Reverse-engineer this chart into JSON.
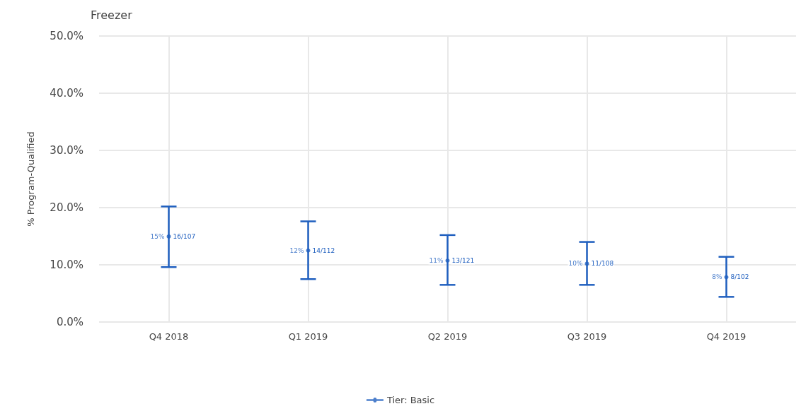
{
  "chart_data": {
    "type": "scatter",
    "title": "Freezer",
    "ylabel": "% Program-Qualified",
    "categories": [
      "Q4 2018",
      "Q1 2019",
      "Q2 2019",
      "Q3 2019",
      "Q4 2019"
    ],
    "series": [
      {
        "name": "Tier: Basic",
        "color": "#1f5fbf",
        "values": [
          14.95,
          12.5,
          10.74,
          10.19,
          7.84
        ],
        "errors": [
          [
            9.6,
            20.2
          ],
          [
            7.5,
            17.6
          ],
          [
            6.5,
            15.2
          ],
          [
            6.5,
            14.0
          ],
          [
            4.4,
            11.4
          ]
        ],
        "value_labels": [
          "15%",
          "12%",
          "11%",
          "10%",
          "8%"
        ]
      }
    ],
    "annotations": [
      {
        "text": "16/107",
        "x": "Q4 2018",
        "y": 14.95
      },
      {
        "text": "14/112",
        "x": "Q1 2019",
        "y": 12.5
      },
      {
        "text": "13/121",
        "x": "Q2 2019",
        "y": 10.74
      },
      {
        "text": "11/108",
        "x": "Q3 2019",
        "y": 10.19
      },
      {
        "text": "8/102",
        "x": "Q4 2019",
        "y": 7.84
      }
    ],
    "ylim": [
      0,
      50
    ],
    "yticks": [
      {
        "value": 0,
        "label": "0.0%"
      },
      {
        "value": 10,
        "label": "10.0%"
      },
      {
        "value": 20,
        "label": "20.0%"
      },
      {
        "value": 30,
        "label": "30.0%"
      },
      {
        "value": 40,
        "label": "40.0%"
      },
      {
        "value": 50,
        "label": "50.0%"
      }
    ],
    "grid": true,
    "legend": "bottom",
    "marker": "circle"
  }
}
